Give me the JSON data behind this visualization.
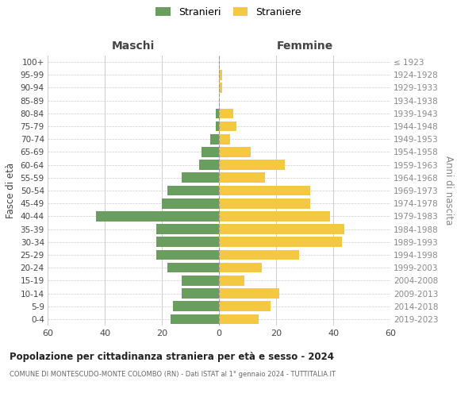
{
  "age_groups": [
    "0-4",
    "5-9",
    "10-14",
    "15-19",
    "20-24",
    "25-29",
    "30-34",
    "35-39",
    "40-44",
    "45-49",
    "50-54",
    "55-59",
    "60-64",
    "65-69",
    "70-74",
    "75-79",
    "80-84",
    "85-89",
    "90-94",
    "95-99",
    "100+"
  ],
  "birth_years": [
    "2019-2023",
    "2014-2018",
    "2009-2013",
    "2004-2008",
    "1999-2003",
    "1994-1998",
    "1989-1993",
    "1984-1988",
    "1979-1983",
    "1974-1978",
    "1969-1973",
    "1964-1968",
    "1959-1963",
    "1954-1958",
    "1949-1953",
    "1944-1948",
    "1939-1943",
    "1934-1938",
    "1929-1933",
    "1924-1928",
    "≤ 1923"
  ],
  "maschi": [
    17,
    16,
    13,
    13,
    18,
    22,
    22,
    22,
    43,
    20,
    18,
    13,
    7,
    6,
    3,
    1,
    1,
    0,
    0,
    0,
    0
  ],
  "femmine": [
    14,
    18,
    21,
    9,
    15,
    28,
    43,
    44,
    39,
    32,
    32,
    16,
    23,
    11,
    4,
    6,
    5,
    0,
    1,
    1,
    0
  ],
  "color_maschi": "#6a9e5e",
  "color_femmine": "#f5c842",
  "label_maschi": "Stranieri",
  "label_femmine": "Straniere",
  "title": "Popolazione per cittadinanza straniera per età e sesso - 2024",
  "subtitle": "COMUNE DI MONTESCUDO-MONTE COLOMBO (RN) - Dati ISTAT al 1° gennaio 2024 - TUTTITALIA.IT",
  "xlabel_left": "Maschi",
  "xlabel_right": "Femmine",
  "ylabel_left": "Fasce di età",
  "ylabel_right": "Anni di nascita",
  "xlim": 60,
  "background_color": "#ffffff",
  "grid_color": "#cccccc"
}
